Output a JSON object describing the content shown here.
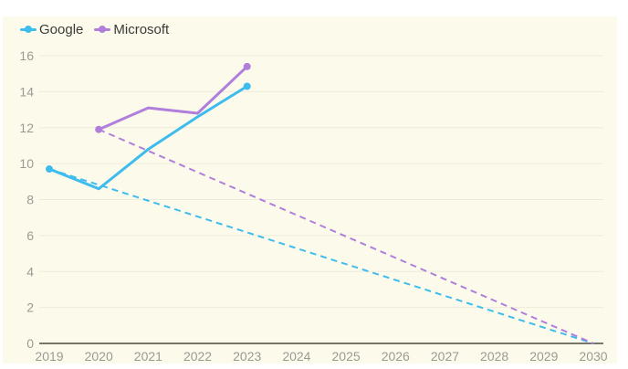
{
  "chart_data": {
    "type": "line",
    "title": "",
    "xlabel": "",
    "ylabel": "",
    "x": [
      2019,
      2020,
      2021,
      2022,
      2023,
      2024,
      2025,
      2026,
      2027,
      2028,
      2029,
      2030
    ],
    "x_tick_labels": [
      "2019",
      "2020",
      "2021",
      "2022",
      "2023",
      "2024",
      "2025",
      "2026",
      "2027",
      "2028",
      "2029",
      "2030"
    ],
    "y_ticks": [
      0,
      2,
      4,
      6,
      8,
      10,
      12,
      14,
      16
    ],
    "y_tick_labels": [
      "0",
      "2",
      "4",
      "6",
      "8",
      "10",
      "12",
      "14",
      "16"
    ],
    "xlim": [
      2019,
      2030
    ],
    "ylim": [
      0,
      16
    ],
    "grid": "horizontal",
    "legend_position": "top-left",
    "series": [
      {
        "name": "Google",
        "color": "#3fbcee",
        "points": [
          [
            2019,
            9.7
          ],
          [
            2020,
            8.6
          ],
          [
            2021,
            10.8
          ],
          [
            2022,
            12.6
          ],
          [
            2023,
            14.3
          ]
        ],
        "trend": {
          "style": "dashed",
          "points": [
            [
              2019,
              9.7
            ],
            [
              2030,
              0
            ]
          ]
        }
      },
      {
        "name": "Microsoft",
        "color": "#b07fdc",
        "points": [
          [
            2020,
            11.9
          ],
          [
            2021,
            13.1
          ],
          [
            2022,
            12.8
          ],
          [
            2023,
            15.4
          ]
        ],
        "trend": {
          "style": "dashed",
          "points": [
            [
              2020,
              11.9
            ],
            [
              2030,
              0
            ]
          ]
        }
      }
    ]
  },
  "legend": [
    {
      "label": "Google",
      "color": "#3fbcee"
    },
    {
      "label": "Microsoft",
      "color": "#b07fdc"
    }
  ],
  "colors": {
    "background": "#fcfbeb",
    "grid": "#ecebdc",
    "axis": "#77766c",
    "tick_text": "#9a9a94"
  }
}
